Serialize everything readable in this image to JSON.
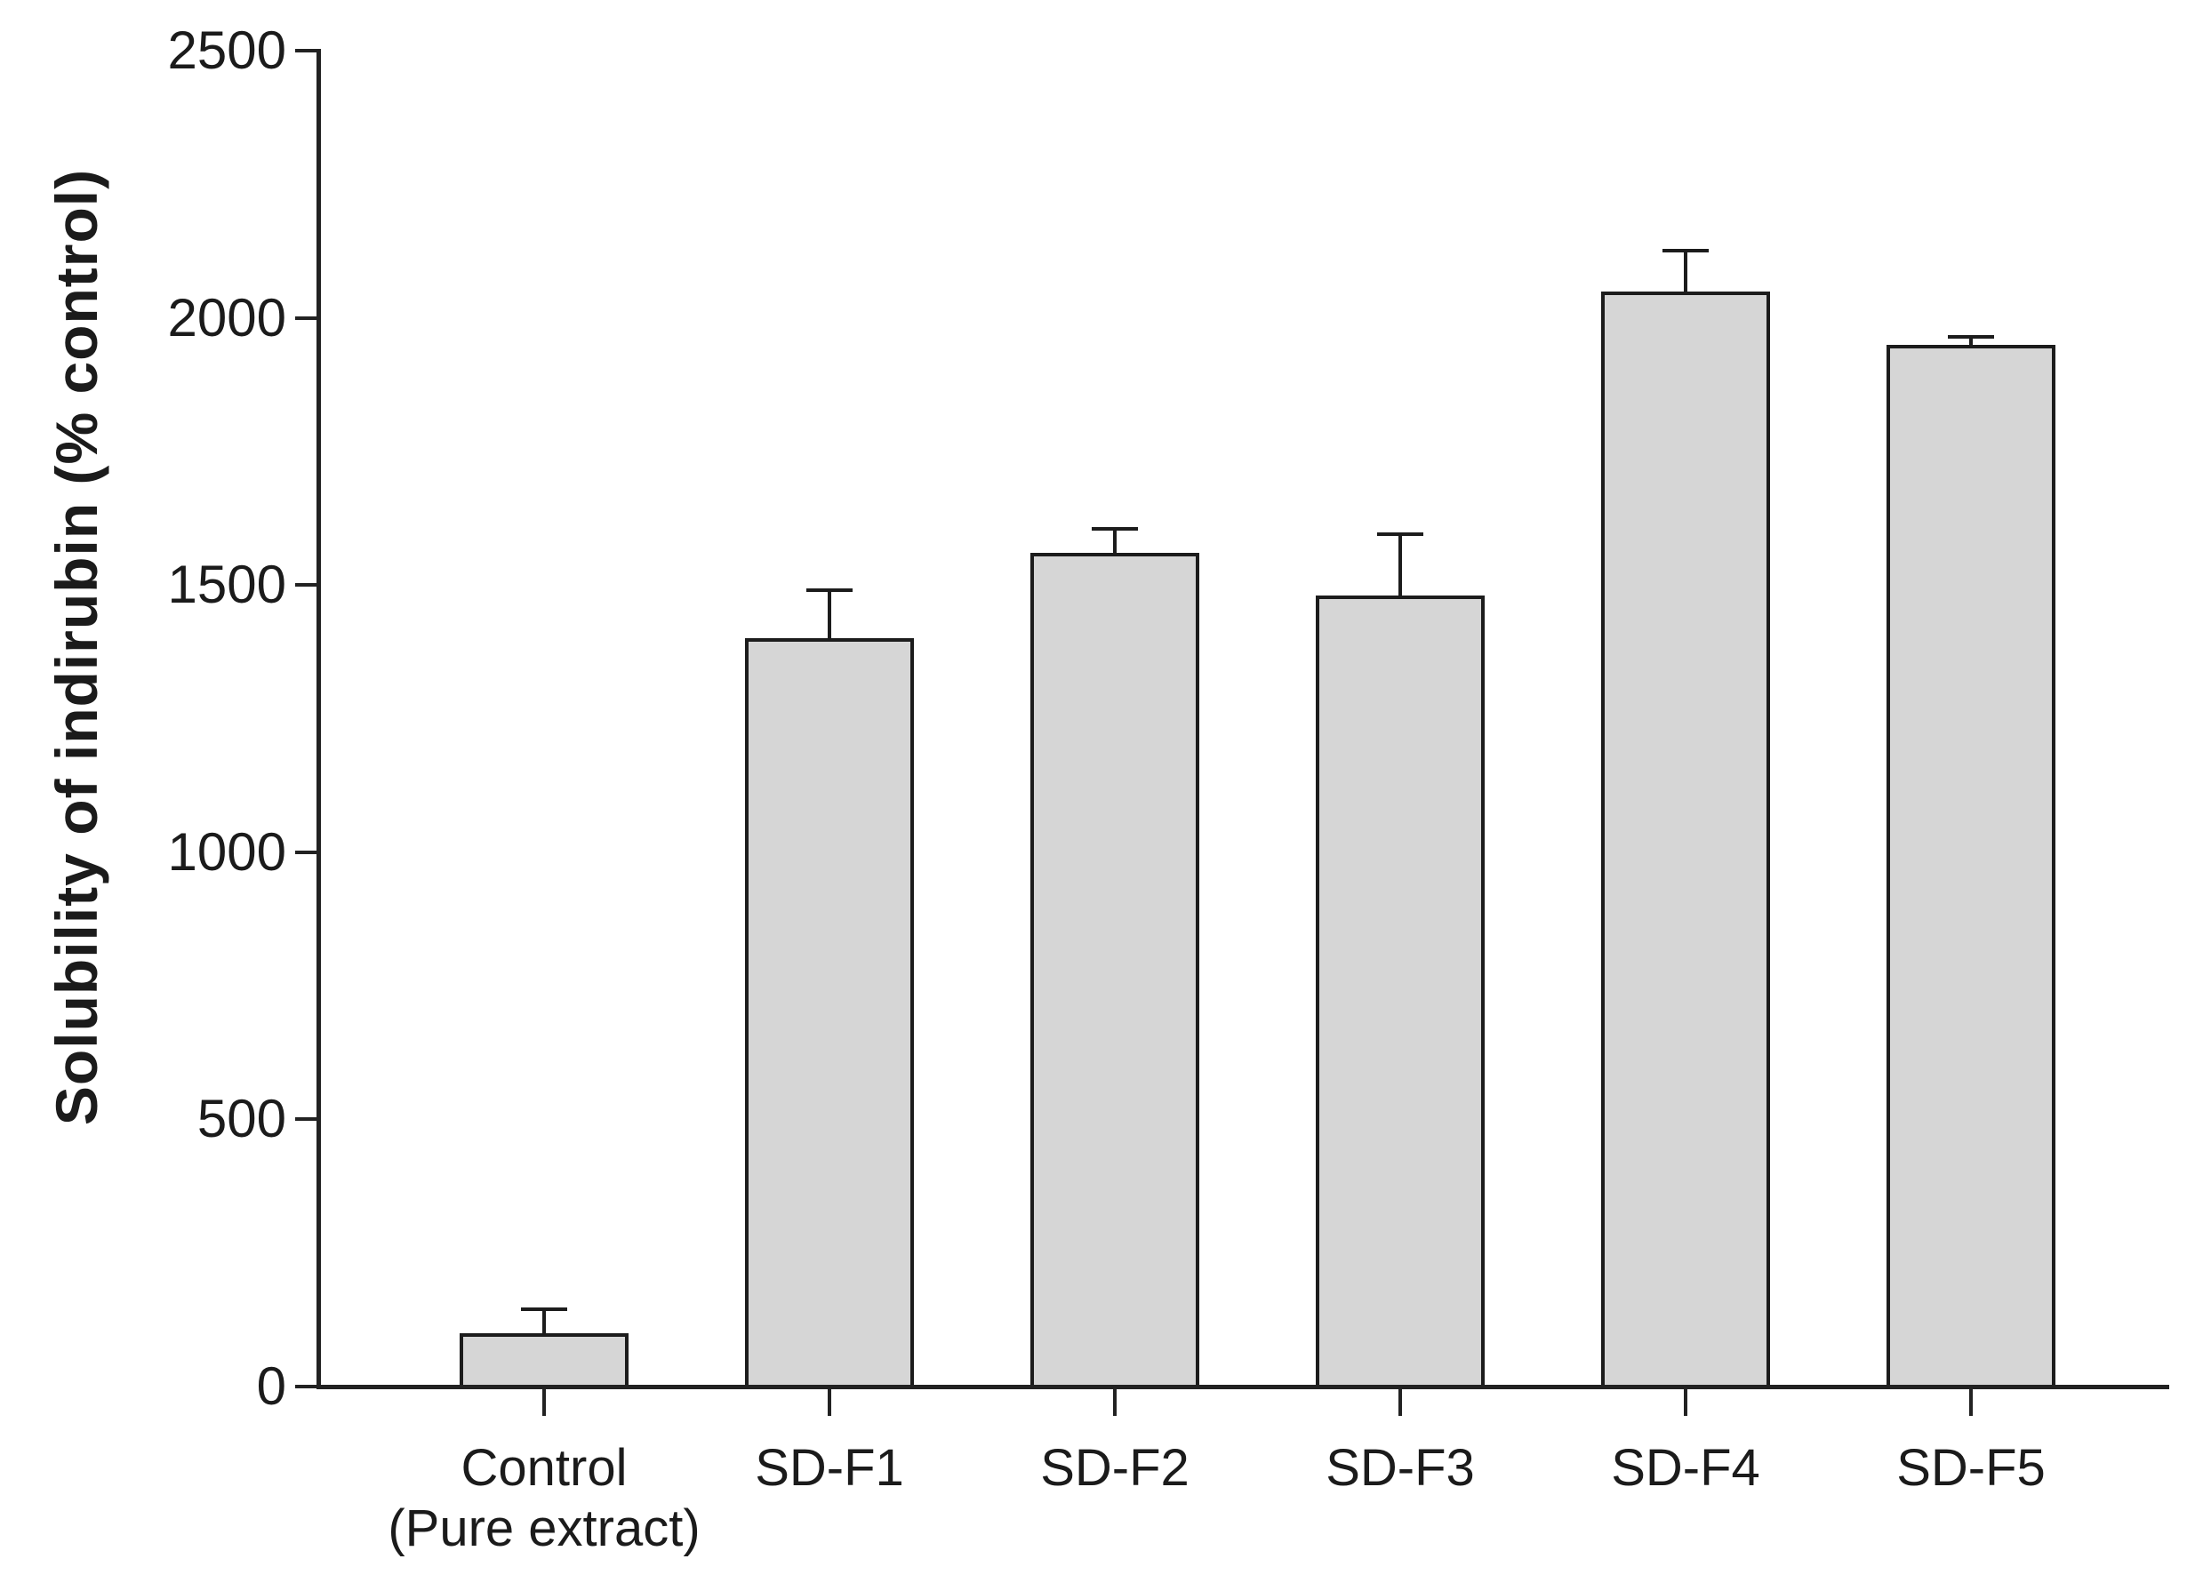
{
  "chart_data": {
    "type": "bar",
    "title": "",
    "xlabel": "",
    "ylabel": "Solubility of indirubin (% control)",
    "ylim": [
      0,
      2500
    ],
    "yticks": [
      0,
      500,
      1000,
      1500,
      2000,
      2500
    ],
    "categories": [
      "Control\n(Pure extract)",
      "SD-F1",
      "SD-F2",
      "SD-F3",
      "SD-F4",
      "SD-F5"
    ],
    "values": [
      100,
      1400,
      1560,
      1480,
      2050,
      1950
    ],
    "errors": [
      45,
      90,
      45,
      115,
      75,
      15
    ],
    "error_direction": "up",
    "grid": false,
    "legend": "none",
    "bar_fill_color": "#d6d6d6",
    "bar_edge_color": "#1c1c1c",
    "axis_color": "#222222",
    "text_color": "#1b1b1b"
  }
}
